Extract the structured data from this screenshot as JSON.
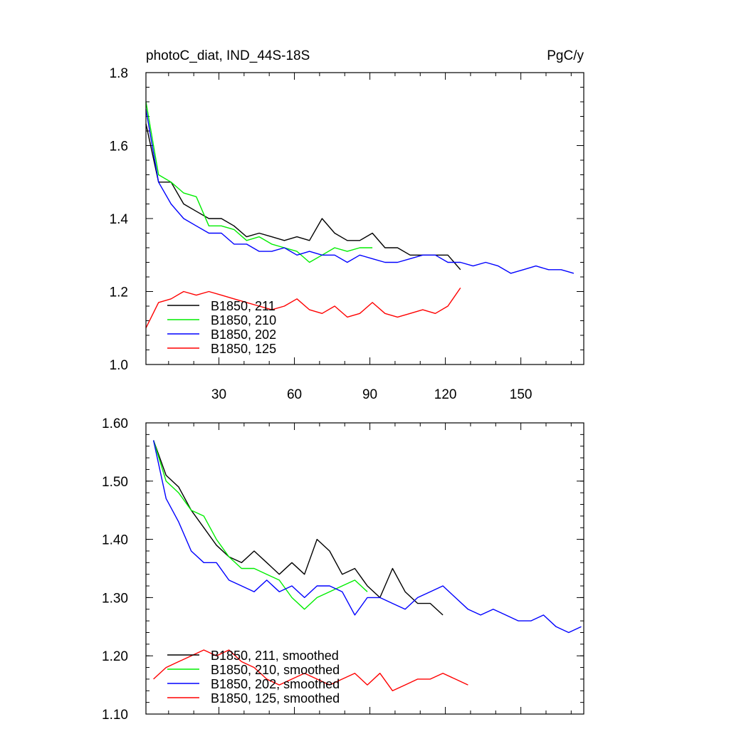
{
  "chart_data": [
    {
      "type": "line",
      "title": "photoC_diat, IND_44S-18S",
      "units": "PgC/y",
      "ylim": [
        1.0,
        1.8
      ],
      "xlim": [
        1,
        175
      ],
      "yticks": [
        1.0,
        1.2,
        1.4,
        1.6,
        1.8
      ],
      "ytick_labels": [
        "1.0",
        "1.2",
        "1.4",
        "1.6",
        "1.8"
      ],
      "xticks": [
        30,
        60,
        90,
        120,
        150
      ],
      "xtick_labels": [
        "30",
        "60",
        "90",
        "120",
        "150"
      ],
      "legend_position": "bottom-left",
      "series": [
        {
          "name": "B1850, 211",
          "color": "#000000",
          "x_start": 1,
          "x_step": 5,
          "values": [
            1.66,
            1.5,
            1.5,
            1.44,
            1.42,
            1.4,
            1.4,
            1.38,
            1.35,
            1.36,
            1.35,
            1.34,
            1.35,
            1.34,
            1.4,
            1.36,
            1.34,
            1.34,
            1.36,
            1.32,
            1.32,
            1.3,
            1.3,
            1.3,
            1.3,
            1.26
          ]
        },
        {
          "name": "B1850, 210",
          "color": "#00ee00",
          "x_start": 1,
          "x_step": 5,
          "values": [
            1.72,
            1.52,
            1.5,
            1.47,
            1.46,
            1.38,
            1.38,
            1.37,
            1.34,
            1.35,
            1.33,
            1.32,
            1.31,
            1.28,
            1.3,
            1.32,
            1.31,
            1.32,
            1.32
          ]
        },
        {
          "name": "B1850, 202",
          "color": "#0000ff",
          "x_start": 1,
          "x_step": 5,
          "values": [
            1.7,
            1.5,
            1.44,
            1.4,
            1.38,
            1.36,
            1.36,
            1.33,
            1.33,
            1.31,
            1.31,
            1.32,
            1.3,
            1.31,
            1.3,
            1.3,
            1.28,
            1.3,
            1.29,
            1.28,
            1.28,
            1.29,
            1.3,
            1.3,
            1.28,
            1.28,
            1.27,
            1.28,
            1.27,
            1.25,
            1.26,
            1.27,
            1.26,
            1.26,
            1.25
          ]
        },
        {
          "name": "B1850, 125",
          "color": "#ff0000",
          "x_start": 1,
          "x_step": 5,
          "values": [
            1.1,
            1.17,
            1.18,
            1.2,
            1.19,
            1.2,
            1.19,
            1.18,
            1.17,
            1.16,
            1.15,
            1.16,
            1.18,
            1.15,
            1.14,
            1.16,
            1.13,
            1.14,
            1.17,
            1.14,
            1.13,
            1.14,
            1.15,
            1.14,
            1.16,
            1.21
          ]
        }
      ]
    },
    {
      "type": "line",
      "title": "",
      "ylim": [
        1.1,
        1.6
      ],
      "xlim": [
        1,
        175
      ],
      "yticks": [
        1.1,
        1.2,
        1.3,
        1.4,
        1.5,
        1.6
      ],
      "ytick_labels": [
        "1.10",
        "1.20",
        "1.30",
        "1.40",
        "1.50",
        "1.60"
      ],
      "xticks": [
        30,
        60,
        90,
        120,
        150
      ],
      "legend_position": "bottom-left",
      "series": [
        {
          "name": "B1850, 211, smoothed",
          "color": "#000000",
          "x_start": 4,
          "x_step": 5,
          "values": [
            1.57,
            1.51,
            1.49,
            1.45,
            1.42,
            1.39,
            1.37,
            1.36,
            1.38,
            1.36,
            1.34,
            1.36,
            1.34,
            1.4,
            1.38,
            1.34,
            1.35,
            1.32,
            1.3,
            1.35,
            1.31,
            1.29,
            1.29,
            1.27
          ]
        },
        {
          "name": "B1850, 210, smoothed",
          "color": "#00ee00",
          "x_start": 4,
          "x_step": 5,
          "values": [
            1.57,
            1.5,
            1.48,
            1.45,
            1.44,
            1.4,
            1.37,
            1.35,
            1.35,
            1.34,
            1.33,
            1.3,
            1.28,
            1.3,
            1.31,
            1.32,
            1.33,
            1.31
          ]
        },
        {
          "name": "B1850, 202, smoothed",
          "color": "#0000ff",
          "x_start": 4,
          "x_step": 5,
          "values": [
            1.57,
            1.47,
            1.43,
            1.38,
            1.36,
            1.36,
            1.33,
            1.32,
            1.31,
            1.33,
            1.31,
            1.32,
            1.3,
            1.32,
            1.32,
            1.31,
            1.27,
            1.3,
            1.3,
            1.29,
            1.28,
            1.3,
            1.31,
            1.32,
            1.3,
            1.28,
            1.27,
            1.28,
            1.27,
            1.26,
            1.26,
            1.27,
            1.25,
            1.24,
            1.25
          ]
        },
        {
          "name": "B1850, 125, smoothed",
          "color": "#ff0000",
          "x_start": 4,
          "x_step": 5,
          "values": [
            1.16,
            1.18,
            1.19,
            1.2,
            1.21,
            1.2,
            1.21,
            1.19,
            1.18,
            1.16,
            1.15,
            1.16,
            1.17,
            1.16,
            1.15,
            1.16,
            1.17,
            1.15,
            1.17,
            1.14,
            1.15,
            1.16,
            1.16,
            1.17,
            1.16,
            1.15
          ]
        }
      ]
    }
  ]
}
